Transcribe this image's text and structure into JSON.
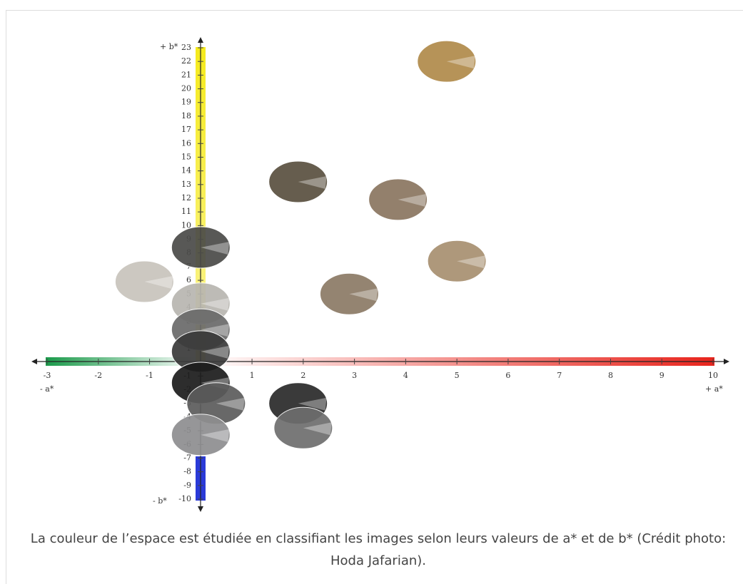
{
  "chart_data": {
    "type": "scatter",
    "caption": "La couleur de l’espace est étudiée en classifiant les images selon leurs valeurs de a* et de b* (Crédit photo: Hoda Jafarian).",
    "x_label_pos": "+ a*",
    "x_label_neg": "- a*",
    "y_label_pos": "+ b*",
    "y_label_neg": "- b*",
    "xlim": [
      -3,
      10
    ],
    "ylim": [
      -10,
      23
    ],
    "xticks": [
      -3,
      -2,
      -1,
      1,
      2,
      3,
      4,
      5,
      6,
      7,
      8,
      9,
      10
    ],
    "yticks": [
      -10,
      -9,
      -8,
      -7,
      -6,
      -5,
      -4,
      -3,
      -2,
      -1,
      1,
      2,
      3,
      4,
      5,
      6,
      7,
      8,
      9,
      10,
      11,
      12,
      13,
      14,
      15,
      16,
      17,
      18,
      19,
      20,
      21,
      22,
      23
    ],
    "x": [
      4.8,
      1.9,
      3.85,
      5.0,
      2.9,
      -1.1,
      0,
      0,
      0,
      0,
      0,
      0.3,
      1.9,
      2.0,
      0
    ],
    "y": [
      22,
      13.2,
      11.9,
      7.4,
      5.0,
      5.9,
      8.4,
      4.3,
      2.4,
      0.8,
      -1.5,
      -3.0,
      -3.0,
      -4.8,
      -5.3
    ],
    "colors": [
      "#b08a4a",
      "#5a5040",
      "#8a7660",
      "#a89070",
      "#8c7a66",
      "#c8c4bc",
      "#4a4a48",
      "#b8b6b0",
      "#6a6a6a",
      "#3a3a3a",
      "#1c1c1c",
      "#5c5c5c",
      "#2a2a2a",
      "#6e6e6e",
      "#8e8e90"
    ]
  }
}
